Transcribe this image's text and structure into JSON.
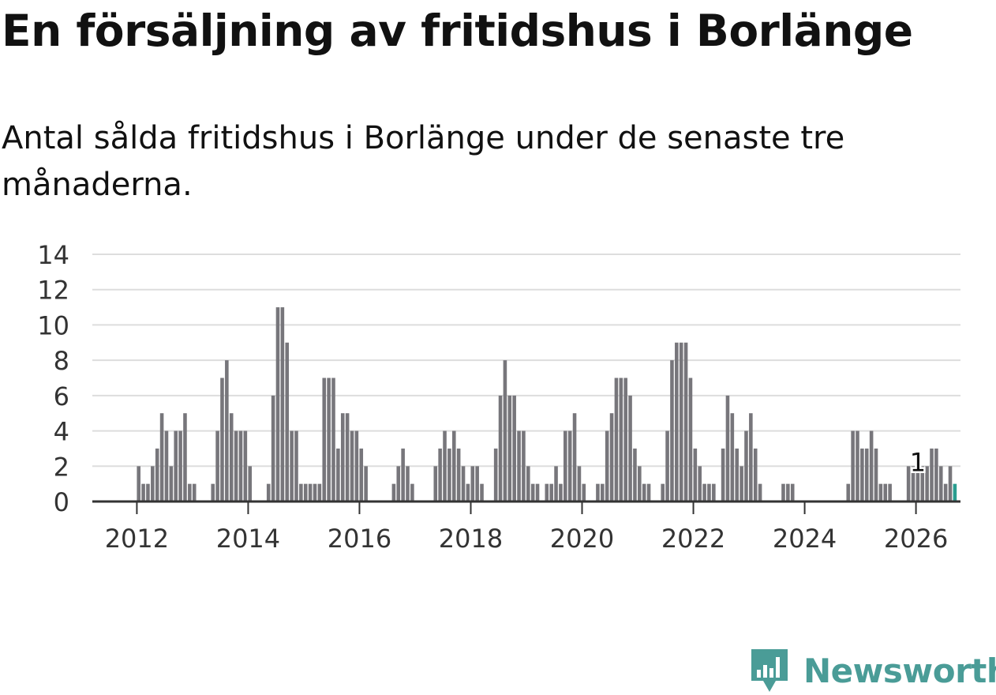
{
  "title": "En försäljning av fritidshus i Borlänge",
  "subtitle": "Antal sålda fritidshus i Borlänge under de senaste tre månaderna.",
  "logo": {
    "text": "Newsworthy",
    "icon": "newsworthy-logo-icon",
    "color": "#4a9c97"
  },
  "colors": {
    "bar": "#77767b",
    "highlight": "#2a9d8f",
    "grid": "#dddddd",
    "axis": "#333333"
  },
  "chart_data": {
    "type": "bar",
    "title": "En försäljning av fritidshus i Borlänge",
    "subtitle": "Antal sålda fritidshus i Borlänge under de senaste tre månaderna.",
    "xlabel": "",
    "ylabel": "",
    "ylim": [
      0,
      14
    ],
    "yticks": [
      0,
      2,
      4,
      6,
      8,
      10,
      12,
      14
    ],
    "xlim": [
      2011.2,
      2026.8
    ],
    "xticks": [
      "2012",
      "2014",
      "2016",
      "2018",
      "2020",
      "2022",
      "2024",
      "2026"
    ],
    "grid": true,
    "start": "2012-01",
    "frequency": "monthly",
    "values": [
      2,
      1,
      1,
      2,
      3,
      5,
      4,
      2,
      4,
      4,
      5,
      1,
      1,
      0,
      0,
      0,
      1,
      4,
      7,
      8,
      5,
      4,
      4,
      4,
      2,
      0,
      0,
      0,
      1,
      6,
      11,
      11,
      9,
      4,
      4,
      1,
      1,
      1,
      1,
      1,
      7,
      7,
      7,
      3,
      5,
      5,
      4,
      4,
      3,
      2,
      0,
      0,
      0,
      0,
      0,
      1,
      2,
      3,
      2,
      1,
      0,
      0,
      0,
      0,
      2,
      3,
      4,
      3,
      4,
      3,
      2,
      1,
      2,
      2,
      1,
      0,
      0,
      3,
      6,
      8,
      6,
      6,
      4,
      4,
      2,
      1,
      1,
      0,
      1,
      1,
      2,
      1,
      4,
      4,
      5,
      2,
      1,
      0,
      0,
      1,
      1,
      4,
      5,
      7,
      7,
      7,
      6,
      3,
      2,
      1,
      1,
      0,
      0,
      1,
      4,
      8,
      9,
      9,
      9,
      7,
      3,
      2,
      1,
      1,
      1,
      0,
      3,
      6,
      5,
      3,
      2,
      4,
      5,
      3,
      1,
      0,
      0,
      0,
      0,
      1,
      1,
      1,
      0,
      0,
      0,
      0,
      0,
      0,
      0,
      0,
      0,
      0,
      0,
      1,
      4,
      4,
      3,
      3,
      4,
      3,
      1,
      1,
      1,
      0,
      0,
      0,
      2,
      2,
      2,
      2,
      2,
      3,
      3,
      2,
      1,
      2,
      1
    ],
    "highlight_last": true,
    "annotation": {
      "label": "1",
      "month": "2026-01",
      "value": 1
    }
  }
}
